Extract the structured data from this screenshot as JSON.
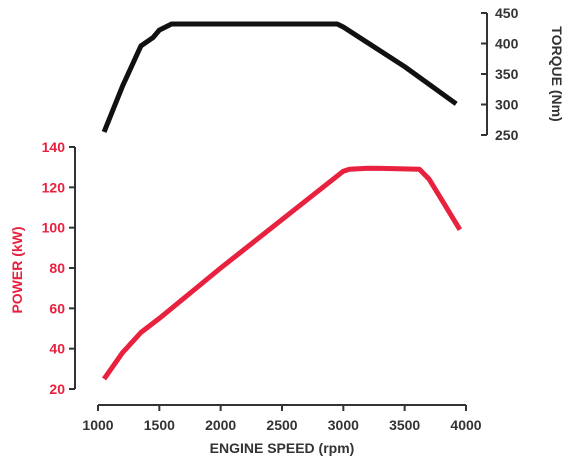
{
  "chart_data": {
    "type": "line",
    "xlabel": "ENGINE SPEED (rpm)",
    "xlim": [
      1000,
      4000
    ],
    "x_ticks": [
      1000,
      1500,
      2000,
      2500,
      3000,
      3500,
      4000
    ],
    "power": {
      "ylabel": "POWER (kW)",
      "ylim": [
        20,
        140
      ],
      "y_ticks": [
        20,
        40,
        60,
        80,
        100,
        120,
        140
      ],
      "color": "#e8213f",
      "x": [
        1050,
        1200,
        1350,
        1500,
        2000,
        2500,
        3000,
        3050,
        3200,
        3400,
        3620,
        3700,
        3800,
        3950
      ],
      "y": [
        25,
        38,
        48,
        55,
        80,
        104,
        128,
        129,
        129.5,
        129.3,
        129,
        124,
        114,
        99
      ]
    },
    "torque": {
      "ylabel": "TORQUE (Nm)",
      "ylim": [
        250,
        450
      ],
      "y_ticks": [
        250,
        300,
        350,
        400,
        450
      ],
      "color": "#111111",
      "x": [
        1050,
        1200,
        1350,
        1450,
        1500,
        1600,
        1650,
        2000,
        2500,
        2950,
        3000,
        3500,
        3920
      ],
      "y": [
        255,
        330,
        396,
        410,
        422,
        432,
        432,
        432,
        432,
        432,
        427,
        362,
        301
      ]
    }
  }
}
